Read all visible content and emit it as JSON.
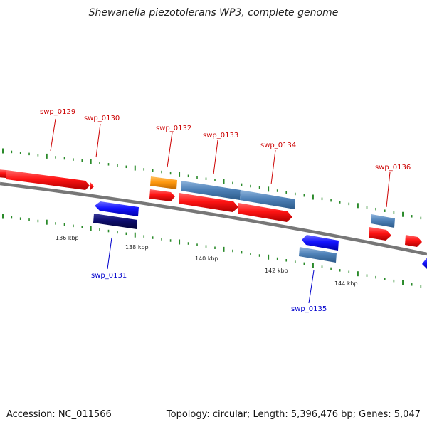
{
  "title": "Shewanella piezotolerans WP3, complete genome",
  "footer": {
    "accession": "Accession: NC_011566",
    "summary": "Topology: circular; Length: 5,396,476 bp; Genes: 5,047"
  },
  "colors": {
    "backbone": "#7f7f7f",
    "tick": "#2a8a2a",
    "forward_gene": "#ff1a1a",
    "reverse_gene": "#1a1aff",
    "orange_gene": "#ff9910",
    "steel_gene": "#4f82b8",
    "navy_gene": "#0d0d6e",
    "label_forward": "#cc0000",
    "label_reverse": "#0000cc"
  },
  "scale_labels": [
    "136 kbp",
    "138 kbp",
    "140 kbp",
    "142 kbp",
    "144 kbp"
  ],
  "gene_labels_forward": [
    "swp_0129",
    "swp_0130",
    "swp_0132",
    "swp_0133",
    "swp_0134",
    "swp_0136"
  ],
  "gene_labels_reverse": [
    "swp_0131",
    "swp_0135"
  ]
}
